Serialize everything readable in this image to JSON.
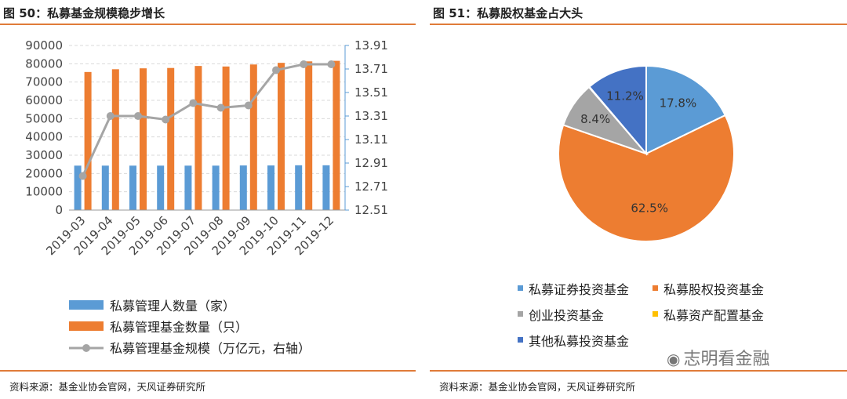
{
  "left": {
    "title": "图 50：私募基金规模稳步增长",
    "source": "资料来源：基金业协会官网，天风证券研究所",
    "colors": {
      "blue": "#5b9bd5",
      "orange": "#ed7d31",
      "gray": "#a5a5a5"
    },
    "legend": [
      "私募管理人数量（家）",
      "私募管理基金数量（只）",
      "私募管理基金规模（万亿元，右轴）"
    ]
  },
  "right": {
    "title": "图 51：私募股权基金占大头",
    "source": "资料来源：基金业协会官网，天风证券研究所",
    "legend": [
      "私募证券投资基金",
      "私募股权投资基金",
      "创业投资基金",
      "私募资产配置基金",
      "其他私募投资基金"
    ]
  },
  "watermark": "志明看金融",
  "chart_data": [
    {
      "type": "bar",
      "categories": [
        "2019-03",
        "2019-04",
        "2019-05",
        "2019-06",
        "2019-07",
        "2019-08",
        "2019-09",
        "2019-10",
        "2019-11",
        "2019-12"
      ],
      "series": [
        {
          "name": "私募管理人数量（家）",
          "type": "bar",
          "axis": "left",
          "color": "#5b9bd5",
          "values": [
            24300,
            24300,
            24300,
            24300,
            24300,
            24300,
            24400,
            24400,
            24500,
            24500
          ]
        },
        {
          "name": "私募管理基金数量（只）",
          "type": "bar",
          "axis": "left",
          "color": "#ed7d31",
          "values": [
            75500,
            77000,
            77500,
            77700,
            78800,
            78500,
            79600,
            80500,
            81300,
            81600
          ]
        },
        {
          "name": "私募管理基金规模（万亿元，右轴）",
          "type": "line",
          "axis": "right",
          "color": "#a5a5a5",
          "values": [
            12.8,
            13.31,
            13.31,
            13.28,
            13.42,
            13.38,
            13.4,
            13.7,
            13.75,
            13.75
          ]
        }
      ],
      "ylim": [
        0,
        90000
      ],
      "yticks": [
        "0",
        "10000",
        "20000",
        "30000",
        "40000",
        "50000",
        "60000",
        "70000",
        "80000",
        "90000"
      ],
      "y2lim": [
        12.51,
        13.91
      ],
      "y2ticks": [
        "12.51",
        "12.71",
        "12.91",
        "13.11",
        "13.31",
        "13.51",
        "13.71",
        "13.91"
      ],
      "grid": true,
      "legend_position": "bottom"
    },
    {
      "type": "pie",
      "labels": [
        "私募证券投资基金",
        "私募股权投资基金",
        "创业投资基金",
        "私募资产配置基金",
        "其他私募投资基金"
      ],
      "values": [
        17.8,
        62.5,
        8.4,
        0.1,
        11.2
      ],
      "display_labels": [
        "17.8%",
        "62.5%",
        "8.4%",
        "",
        "11.2%"
      ],
      "colors": [
        "#5b9bd5",
        "#ed7d31",
        "#a5a5a5",
        "#ffc000",
        "#4472c4"
      ],
      "legend_position": "bottom"
    }
  ]
}
